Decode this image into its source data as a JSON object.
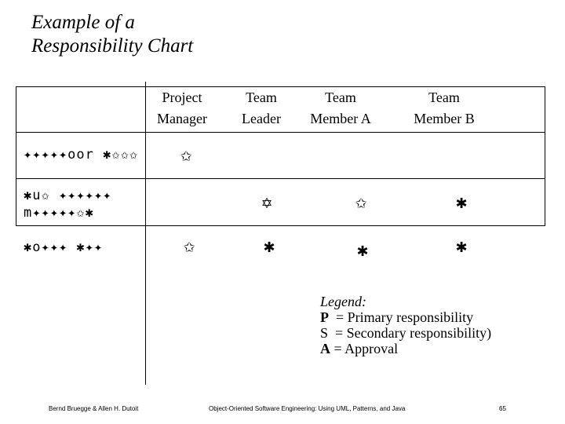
{
  "title": {
    "line1": "Example of a",
    "line2": "Responsibility Chart"
  },
  "columns": [
    "Project\nManager",
    "Team\nLeader",
    "Team\nMember A",
    "Team\nMember B"
  ],
  "column_lines": [
    [
      "Project",
      "Manager"
    ],
    [
      "Team",
      "Leader"
    ],
    [
      "Team",
      "Member A"
    ],
    [
      "Team",
      "Member B"
    ]
  ],
  "rows": [
    {
      "label_lines": [
        "✦✦✦✦✦oor ✱✩✩✩"
      ],
      "cells": [
        "✩",
        "",
        "",
        ""
      ]
    },
    {
      "label_lines": [
        "✱u✩ ✦✦✦✦✦✦",
        "m✦✦✦✦✦✩✱"
      ],
      "cells": [
        "",
        "✡",
        "✩",
        "✱"
      ]
    },
    {
      "label_lines": [
        "✱o✦✦✦ ✱✦✦"
      ],
      "cells": [
        "✩",
        "✱",
        "✱",
        "✱"
      ]
    }
  ],
  "legend": {
    "title": "Legend:",
    "items": [
      {
        "key": "P",
        "text": "= Primary responsibility"
      },
      {
        "key": "S",
        "text": "= Secondary responsibility)"
      },
      {
        "key": "A",
        "text": "= Approval"
      }
    ]
  },
  "footer": {
    "left": "Bernd Bruegge & Allen H. Dutoit",
    "center": "Object-Oriented Software Engineering: Using UML, Patterns, and Java",
    "right": "65"
  }
}
